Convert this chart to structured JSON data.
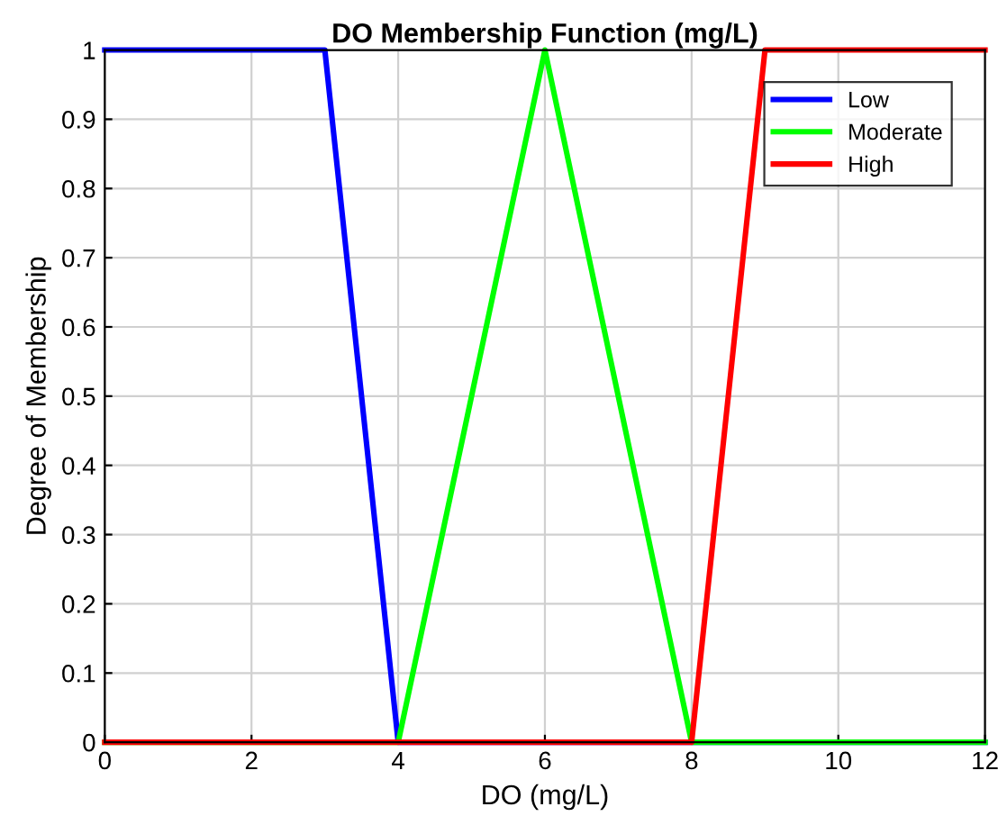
{
  "chart_data": {
    "type": "line",
    "title": "DO Membership Function (mg/L)",
    "xlabel": "DO (mg/L)",
    "ylabel": "Degree of Membership",
    "series": [
      {
        "name": "Low",
        "color": "#0000ff",
        "x": [
          0,
          3,
          4,
          12
        ],
        "values": [
          1,
          1,
          0,
          0
        ]
      },
      {
        "name": "Moderate",
        "color": "#00ff00",
        "x": [
          0,
          4,
          6,
          8,
          12
        ],
        "values": [
          0,
          0,
          1,
          0,
          0
        ]
      },
      {
        "name": "High",
        "color": "#ff0000",
        "x": [
          0,
          8,
          9,
          12
        ],
        "values": [
          0,
          0,
          1,
          1
        ]
      }
    ],
    "xlim": [
      0,
      12
    ],
    "xticks": [
      0,
      2,
      4,
      6,
      8,
      10,
      12
    ],
    "ylim": [
      0,
      1
    ],
    "yticks": [
      0,
      0.1,
      0.2,
      0.3,
      0.4,
      0.5,
      0.6,
      0.7,
      0.8,
      0.9,
      1
    ],
    "grid": true,
    "legend": "top right",
    "marker": "none",
    "line_style": "solid"
  }
}
